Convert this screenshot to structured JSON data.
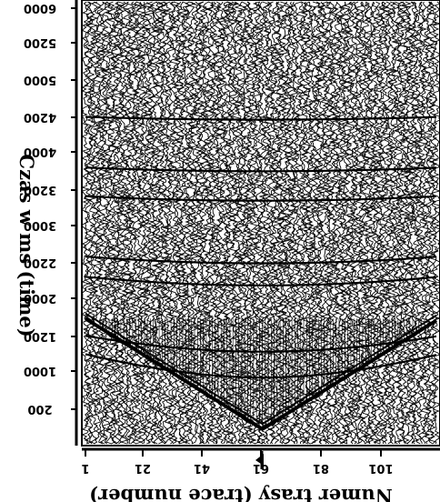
{
  "chart_data": {
    "type": "heatmap",
    "subtype": "seismic-wiggle-gather",
    "orientation_note": "image rendered mirrored and upside-down",
    "xlabel": "Numer trasy (trace number)",
    "ylabel": "Czas w ms (time)",
    "x_ticks": [
      1,
      21,
      41,
      61,
      81,
      101
    ],
    "y_ticks": [
      200,
      1000,
      1200,
      2000,
      2200,
      3000,
      3200,
      4000,
      4200,
      5000,
      5200,
      6000
    ],
    "xlim": [
      1,
      120
    ],
    "ylim": [
      0,
      6000
    ],
    "source_trace": 61,
    "first_break_apex_time_ms": 200,
    "first_break_edge_time_ms": 1700,
    "reflection_times_ms": [
      900,
      1250,
      2150,
      2450,
      3300,
      3700,
      4400
    ],
    "grid": false
  },
  "colors": {
    "ink": "#000000",
    "paper": "#ffffff"
  },
  "icons": {
    "shot_marker": "arrow-icon"
  }
}
